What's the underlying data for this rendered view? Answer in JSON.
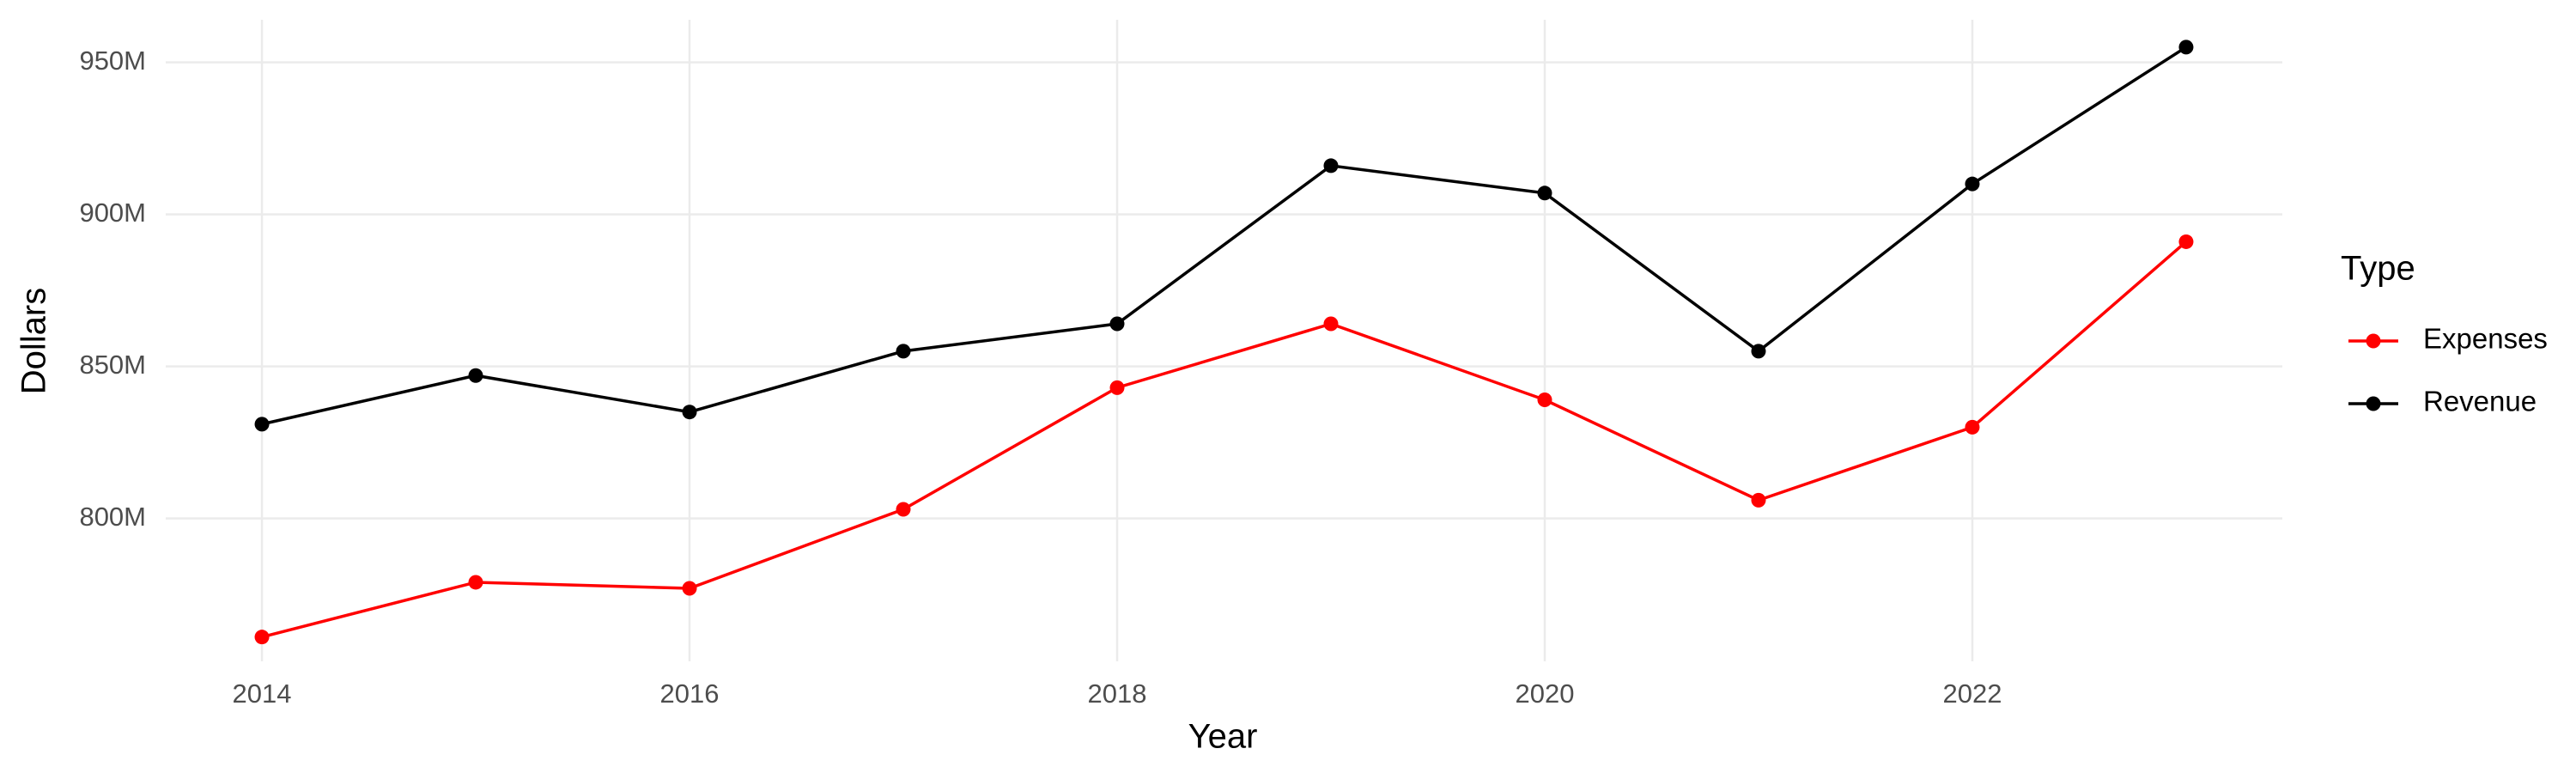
{
  "chart_data": {
    "type": "line",
    "x_label": "Year",
    "y_label": "Dollars",
    "legend_title": "Type",
    "legend_position": "right",
    "x": [
      2014,
      2015,
      2016,
      2017,
      2018,
      2019,
      2020,
      2021,
      2022,
      2023
    ],
    "series": [
      {
        "name": "Expenses",
        "color": "#ff0000",
        "values": [
          761000000,
          779000000,
          777000000,
          803000000,
          843000000,
          864000000,
          839000000,
          806000000,
          830000000,
          891000000
        ]
      },
      {
        "name": "Revenue",
        "color": "#000000",
        "values": [
          831000000,
          847000000,
          835000000,
          855000000,
          864000000,
          916000000,
          907000000,
          855000000,
          910000000,
          955000000
        ]
      }
    ],
    "xlim": [
      2013.55,
      2023.45
    ],
    "xticks": [
      2014,
      2016,
      2018,
      2020,
      2022
    ],
    "ylim": [
      753000000,
      964000000
    ],
    "yticks": [
      {
        "value": 800000000,
        "label": "800M"
      },
      {
        "value": 850000000,
        "label": "850M"
      },
      {
        "value": 900000000,
        "label": "900M"
      },
      {
        "value": 950000000,
        "label": "950M"
      }
    ],
    "grid": true
  }
}
